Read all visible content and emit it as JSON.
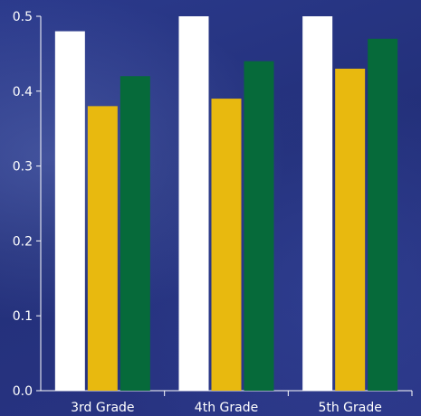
{
  "chart_data": {
    "type": "bar",
    "categories": [
      "3rd Grade",
      "4th Grade",
      "5th Grade"
    ],
    "series": [
      {
        "values": [
          0.48,
          0.5,
          0.5
        ],
        "color": "#ffffff"
      },
      {
        "values": [
          0.38,
          0.39,
          0.43
        ],
        "color": "#e8b90f"
      },
      {
        "values": [
          0.42,
          0.44,
          0.47
        ],
        "color": "#066a3a"
      }
    ],
    "ylim": [
      0,
      0.5
    ],
    "yticks": [
      "0.0",
      "0.1",
      "0.2",
      "0.3",
      "0.4",
      "0.5"
    ],
    "grid": false,
    "title": "",
    "xlabel": "",
    "ylabel": ""
  }
}
